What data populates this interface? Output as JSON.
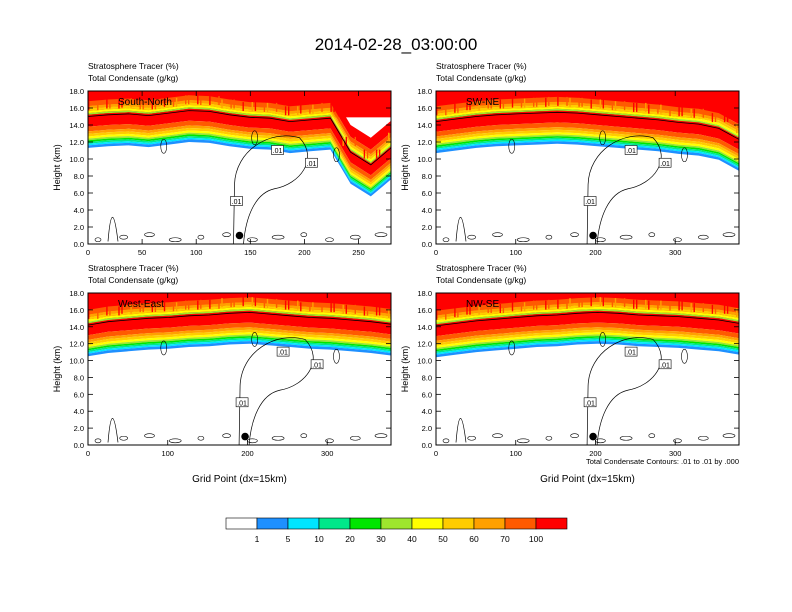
{
  "title": "2014-02-28_03:00:00",
  "panel_subtitle_1": "Stratosphere Tracer   (%)",
  "panel_subtitle_2": "Total Condensate   (g/kg)",
  "ylabel": "Height (km)",
  "xlabel": "Grid Point (dx=15km)",
  "contour_note": "Total Condensate Contours: .01 to .01 by .000",
  "contour_label": ".01",
  "colors": {
    "levels": [
      "#ffffff",
      "#1e90ff",
      "#00e5ff",
      "#00e88a",
      "#00e600",
      "#9ee62e",
      "#ffff00",
      "#ffcc00",
      "#ffa000",
      "#ff5a00",
      "#ff0000"
    ]
  },
  "chart_data": [
    {
      "type": "heatmap",
      "panel_label": "South-North",
      "x_ticks": [
        0,
        50,
        100,
        150,
        200,
        250
      ],
      "xlim": [
        0,
        280
      ],
      "ylim": [
        0,
        18
      ],
      "y_ticks": [
        "0.0",
        "2.0",
        "4.0",
        "6.0",
        "8.0",
        "10.0",
        "12.0",
        "14.0",
        "16.0",
        "18.0"
      ],
      "tropopause_km": [
        15.2,
        15.4,
        15.5,
        15.3,
        15.6,
        15.9,
        15.8,
        15.4,
        15.1,
        15.0,
        14.6,
        14.8,
        15.0,
        11.0,
        9.5,
        11.5
      ],
      "marker_x": 140
    },
    {
      "type": "heatmap",
      "panel_label": "SW-NE",
      "x_ticks": [
        0,
        100,
        200,
        300
      ],
      "xlim": [
        0,
        380
      ],
      "ylim": [
        0,
        18
      ],
      "y_ticks": [
        "0.0",
        "2.0",
        "4.0",
        "6.0",
        "8.0",
        "10.0",
        "12.0",
        "14.0",
        "16.0",
        "18.0"
      ],
      "tropopause_km": [
        14.6,
        14.9,
        15.2,
        15.4,
        15.5,
        15.6,
        15.7,
        15.6,
        15.4,
        15.2,
        15.0,
        14.8,
        14.5,
        14.3,
        13.8,
        12.5
      ],
      "marker_x": 197
    },
    {
      "type": "heatmap",
      "panel_label": "West-East",
      "x_ticks": [
        0,
        100,
        200,
        300
      ],
      "xlim": [
        0,
        380
      ],
      "ylim": [
        0,
        18
      ],
      "y_ticks": [
        "0.0",
        "2.0",
        "4.0",
        "6.0",
        "8.0",
        "10.0",
        "12.0",
        "14.0",
        "16.0",
        "18.0"
      ],
      "tropopause_km": [
        14.4,
        14.8,
        15.0,
        15.2,
        15.3,
        15.5,
        15.6,
        15.8,
        15.9,
        15.7,
        15.5,
        15.3,
        15.2,
        15.0,
        14.8,
        14.5
      ],
      "marker_x": 197
    },
    {
      "type": "heatmap",
      "panel_label": "NW-SE",
      "x_ticks": [
        0,
        100,
        200,
        300
      ],
      "xlim": [
        0,
        380
      ],
      "ylim": [
        0,
        18
      ],
      "y_ticks": [
        "0.0",
        "2.0",
        "4.0",
        "6.0",
        "8.0",
        "10.0",
        "12.0",
        "14.0",
        "16.0",
        "18.0"
      ],
      "tropopause_km": [
        14.3,
        14.6,
        14.9,
        15.1,
        15.3,
        15.5,
        15.6,
        15.8,
        15.9,
        15.8,
        15.6,
        15.5,
        15.4,
        15.2,
        15.0,
        14.6
      ],
      "marker_x": 197
    }
  ],
  "colorbar": {
    "labels": [
      "1",
      "5",
      "10",
      "20",
      "30",
      "40",
      "50",
      "60",
      "70",
      "100"
    ]
  }
}
